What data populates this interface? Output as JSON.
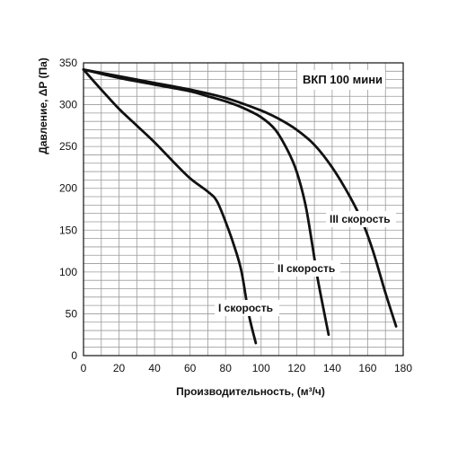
{
  "chart_data": {
    "type": "line",
    "title": "ВКП 100 мини",
    "xlabel": "Производительность, (м³/ч)",
    "ylabel": "Давление, ΔP (Па)",
    "xlim": [
      0,
      180
    ],
    "ylim": [
      0,
      350
    ],
    "x_ticks": [
      0,
      20,
      40,
      60,
      80,
      100,
      120,
      140,
      160,
      180
    ],
    "y_ticks": [
      0,
      50,
      100,
      150,
      200,
      250,
      300,
      350
    ],
    "x_tick_labels": [
      "0",
      "20",
      "40",
      "60",
      "80",
      "100",
      "120",
      "140",
      "160",
      "180"
    ],
    "y_tick_labels": [
      "0",
      "50",
      "100",
      "150",
      "200",
      "250",
      "300",
      "350"
    ],
    "grid": true,
    "legend": "none",
    "line_color": "#111111",
    "series": [
      {
        "name": "I скорость",
        "x": [
          0,
          10,
          20,
          30,
          40,
          50,
          60,
          70,
          75,
          80,
          85,
          89,
          93,
          97
        ],
        "y": [
          342,
          318,
          295,
          275,
          255,
          233,
          212,
          196,
          185,
          160,
          130,
          100,
          50,
          15
        ]
      },
      {
        "name": "II скорость",
        "x": [
          0,
          20,
          40,
          60,
          70,
          80,
          90,
          100,
          108,
          115,
          120,
          125,
          129,
          132,
          138
        ],
        "y": [
          342,
          332,
          324,
          316,
          310,
          304,
          296,
          285,
          270,
          245,
          220,
          180,
          130,
          90,
          25
        ]
      },
      {
        "name": "III скорость",
        "x": [
          0,
          20,
          40,
          60,
          80,
          100,
          110,
          120,
          130,
          140,
          150,
          157,
          163,
          170,
          176
        ],
        "y": [
          342,
          334,
          326,
          318,
          308,
          293,
          283,
          270,
          252,
          225,
          190,
          160,
          125,
          75,
          35
        ]
      }
    ]
  }
}
